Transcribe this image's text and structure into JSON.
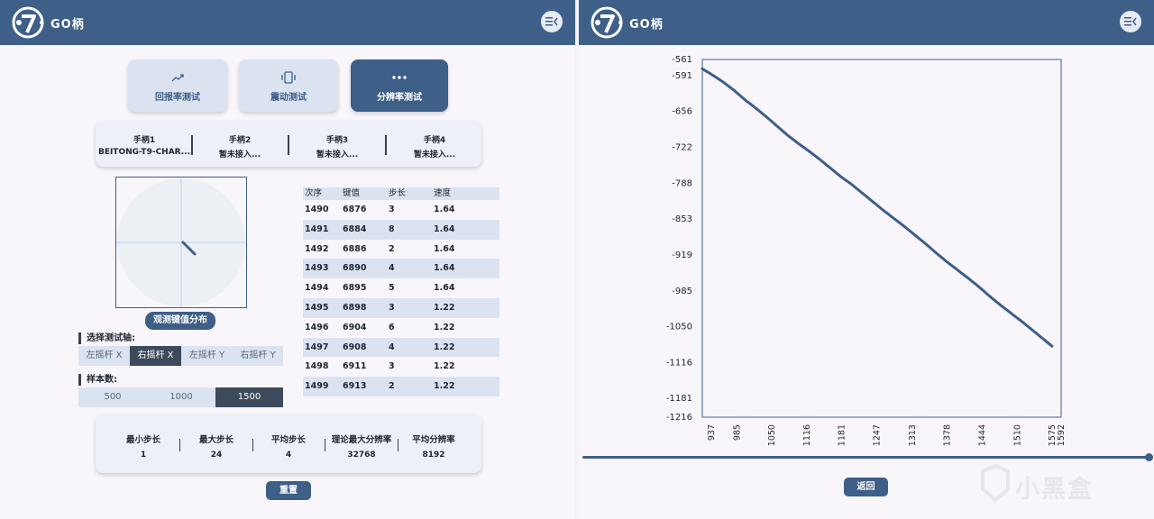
{
  "app_title": "GO柄",
  "tabs": [
    {
      "label": "回报率测试",
      "icon": "trend-icon"
    },
    {
      "label": "震动测试",
      "icon": "vibration-icon"
    },
    {
      "label": "分辨率测试",
      "icon": "dots-icon",
      "active": true
    }
  ],
  "gamepads": [
    {
      "name": "手柄1",
      "status": "BEITONG-T9-CHAR..."
    },
    {
      "name": "手柄2",
      "status": "暂未接入..."
    },
    {
      "name": "手柄3",
      "status": "暂未接入..."
    },
    {
      "name": "手柄4",
      "status": "暂未接入..."
    }
  ],
  "observe_button": "观测键值分布",
  "axis_select": {
    "label": "选择测试轴:",
    "options": [
      "左摇杆 X",
      "右摇杆 X",
      "左摇杆 Y",
      "右摇杆 Y"
    ],
    "selected": "右摇杆 X"
  },
  "sample_count": {
    "label": "样本数:",
    "options": [
      "500",
      "1000",
      "1500"
    ],
    "selected": "1500"
  },
  "table": {
    "headers": [
      "次序",
      "键值",
      "步长",
      "速度"
    ],
    "rows": [
      [
        "1490",
        "6876",
        "3",
        "1.64"
      ],
      [
        "1491",
        "6884",
        "8",
        "1.64"
      ],
      [
        "1492",
        "6886",
        "2",
        "1.64"
      ],
      [
        "1493",
        "6890",
        "4",
        "1.64"
      ],
      [
        "1494",
        "6895",
        "5",
        "1.64"
      ],
      [
        "1495",
        "6898",
        "3",
        "1.22"
      ],
      [
        "1496",
        "6904",
        "6",
        "1.22"
      ],
      [
        "1497",
        "6908",
        "4",
        "1.22"
      ],
      [
        "1498",
        "6911",
        "3",
        "1.22"
      ],
      [
        "1499",
        "6913",
        "2",
        "1.22"
      ]
    ]
  },
  "stats": [
    {
      "label": "最小步长",
      "value": "1"
    },
    {
      "label": "最大步长",
      "value": "24"
    },
    {
      "label": "平均步长",
      "value": "4"
    },
    {
      "label": "理论最大分辨率",
      "value": "32768"
    },
    {
      "label": "平均分辨率",
      "value": "8192"
    }
  ],
  "reset_button": "重置",
  "back_button": "返回",
  "watermark": "小黑盒",
  "colors": {
    "primary": "#3e5f88",
    "light": "#dbe3f1",
    "dark_segment": "#3d4a5c"
  },
  "chart_data": {
    "type": "scatter",
    "title": "",
    "xlabel": "",
    "ylabel": "",
    "x_ticks": [
      "937",
      "985",
      "1050",
      "1116",
      "1181",
      "1247",
      "1313",
      "1378",
      "1444",
      "1510",
      "1575",
      "1592"
    ],
    "y_ticks": [
      "-561",
      "-591",
      "-656",
      "-722",
      "-788",
      "-853",
      "-919",
      "-985",
      "-1050",
      "-1116",
      "-1181",
      "-1216"
    ],
    "xlim": [
      920,
      1592
    ],
    "ylim": [
      -1216,
      -561
    ],
    "series": [
      {
        "points": [
          [
            920,
            -578
          ],
          [
            940,
            -590
          ],
          [
            960,
            -603
          ],
          [
            980,
            -618
          ],
          [
            1000,
            -635
          ],
          [
            1020,
            -650
          ],
          [
            1040,
            -666
          ],
          [
            1060,
            -683
          ],
          [
            1080,
            -700
          ],
          [
            1100,
            -715
          ],
          [
            1120,
            -729
          ],
          [
            1140,
            -744
          ],
          [
            1160,
            -760
          ],
          [
            1180,
            -776
          ],
          [
            1200,
            -790
          ],
          [
            1220,
            -806
          ],
          [
            1240,
            -822
          ],
          [
            1260,
            -838
          ],
          [
            1280,
            -853
          ],
          [
            1300,
            -868
          ],
          [
            1320,
            -884
          ],
          [
            1340,
            -900
          ],
          [
            1360,
            -917
          ],
          [
            1380,
            -933
          ],
          [
            1400,
            -948
          ],
          [
            1420,
            -963
          ],
          [
            1440,
            -979
          ],
          [
            1460,
            -996
          ],
          [
            1480,
            -1012
          ],
          [
            1500,
            -1027
          ],
          [
            1520,
            -1042
          ],
          [
            1540,
            -1058
          ],
          [
            1560,
            -1074
          ],
          [
            1575,
            -1086
          ]
        ]
      }
    ],
    "color": "#3e5f88",
    "grid": false
  }
}
